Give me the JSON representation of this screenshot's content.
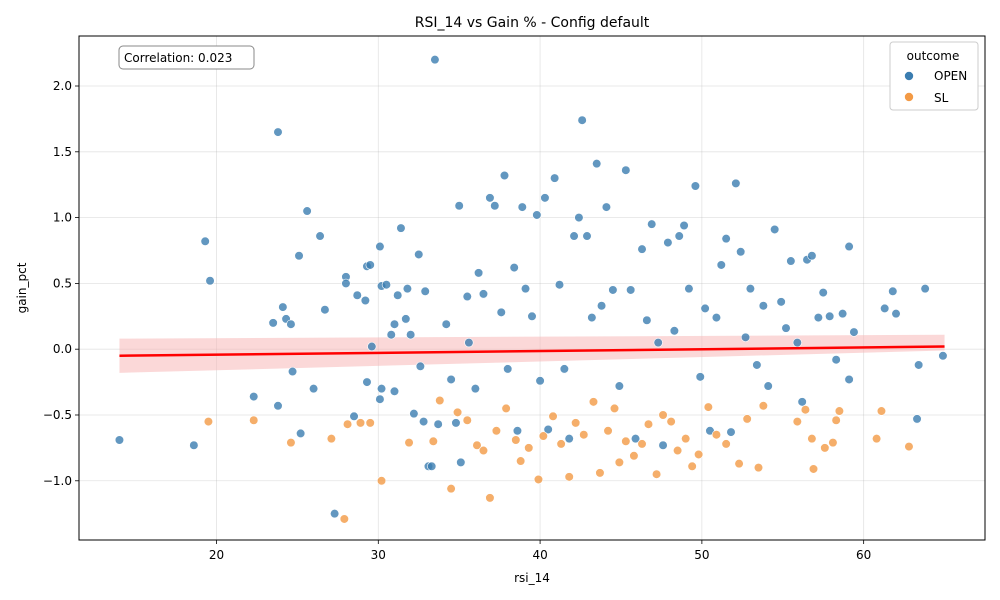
{
  "chart_data": {
    "type": "scatter",
    "title": "RSI_14 vs Gain % - Config default",
    "xlabel": "rsi_14",
    "ylabel": "gain_pct",
    "xlim": [
      11.5,
      67.5
    ],
    "ylim": [
      -1.45,
      2.38
    ],
    "xticks": [
      20,
      30,
      40,
      50,
      60
    ],
    "yticks": [
      -1.0,
      -0.5,
      0.0,
      0.5,
      1.0,
      1.5,
      2.0
    ],
    "xtick_labels": [
      "20",
      "30",
      "40",
      "50",
      "60"
    ],
    "ytick_labels": [
      "−1.0",
      "−0.5",
      "0.0",
      "0.5",
      "1.0",
      "1.5",
      "2.0"
    ],
    "grid": true,
    "annotation": "Correlation: 0.023",
    "legend": {
      "title": "outcome",
      "placement": "top-right",
      "entries": [
        {
          "label": "OPEN",
          "color": "#3b7db0"
        },
        {
          "label": "SL",
          "color": "#f39a45"
        }
      ]
    },
    "regression": {
      "color": "#ff0000",
      "band_color": "#f7b8b8",
      "x": [
        14,
        65
      ],
      "y": [
        -0.05,
        0.02
      ],
      "ci_lower": [
        -0.18,
        -0.01
      ],
      "ci_upper": [
        0.08,
        0.11
      ]
    },
    "series": [
      {
        "name": "OPEN",
        "color": "#3b7db0",
        "points": [
          [
            14.0,
            -0.69
          ],
          [
            18.6,
            -0.73
          ],
          [
            19.3,
            0.82
          ],
          [
            19.6,
            0.52
          ],
          [
            22.3,
            -0.36
          ],
          [
            23.5,
            0.2
          ],
          [
            23.8,
            -0.43
          ],
          [
            23.8,
            1.65
          ],
          [
            24.1,
            0.32
          ],
          [
            24.3,
            0.23
          ],
          [
            24.6,
            0.19
          ],
          [
            24.7,
            -0.17
          ],
          [
            25.1,
            0.71
          ],
          [
            25.2,
            -0.64
          ],
          [
            25.6,
            1.05
          ],
          [
            26.0,
            -0.3
          ],
          [
            26.4,
            0.86
          ],
          [
            26.7,
            0.3
          ],
          [
            27.3,
            -1.25
          ],
          [
            28.0,
            0.55
          ],
          [
            28.0,
            0.5
          ],
          [
            28.5,
            -0.51
          ],
          [
            28.7,
            0.41
          ],
          [
            29.2,
            0.37
          ],
          [
            29.3,
            0.63
          ],
          [
            29.3,
            -0.25
          ],
          [
            29.5,
            0.64
          ],
          [
            29.6,
            0.02
          ],
          [
            30.1,
            0.78
          ],
          [
            30.1,
            -0.38
          ],
          [
            30.2,
            -0.3
          ],
          [
            30.2,
            0.48
          ],
          [
            30.5,
            0.49
          ],
          [
            30.8,
            0.11
          ],
          [
            31.0,
            -0.32
          ],
          [
            31.0,
            0.19
          ],
          [
            31.2,
            0.41
          ],
          [
            31.4,
            0.92
          ],
          [
            31.7,
            0.23
          ],
          [
            31.8,
            0.46
          ],
          [
            32.0,
            0.11
          ],
          [
            32.2,
            -0.49
          ],
          [
            32.5,
            0.72
          ],
          [
            32.6,
            -0.13
          ],
          [
            32.8,
            -0.55
          ],
          [
            32.9,
            0.44
          ],
          [
            33.1,
            -0.89
          ],
          [
            33.3,
            -0.89
          ],
          [
            33.5,
            2.2
          ],
          [
            33.7,
            -0.57
          ],
          [
            34.2,
            0.19
          ],
          [
            34.5,
            -0.23
          ],
          [
            34.8,
            -0.56
          ],
          [
            35.0,
            1.09
          ],
          [
            35.1,
            -0.86
          ],
          [
            35.5,
            0.4
          ],
          [
            35.6,
            0.05
          ],
          [
            36.0,
            -0.3
          ],
          [
            36.2,
            0.58
          ],
          [
            36.5,
            0.42
          ],
          [
            36.9,
            1.15
          ],
          [
            37.2,
            1.09
          ],
          [
            37.6,
            0.28
          ],
          [
            37.8,
            1.32
          ],
          [
            38.0,
            -0.15
          ],
          [
            38.4,
            0.62
          ],
          [
            38.6,
            -0.62
          ],
          [
            38.9,
            1.08
          ],
          [
            39.1,
            0.46
          ],
          [
            39.5,
            0.25
          ],
          [
            39.8,
            1.02
          ],
          [
            40.0,
            -0.24
          ],
          [
            40.3,
            1.15
          ],
          [
            40.5,
            -0.61
          ],
          [
            40.9,
            1.3
          ],
          [
            41.2,
            0.49
          ],
          [
            41.5,
            -0.15
          ],
          [
            41.8,
            -0.68
          ],
          [
            42.1,
            0.86
          ],
          [
            42.4,
            1.0
          ],
          [
            42.6,
            1.74
          ],
          [
            42.9,
            0.86
          ],
          [
            43.2,
            0.24
          ],
          [
            43.5,
            1.41
          ],
          [
            43.8,
            0.33
          ],
          [
            44.1,
            1.08
          ],
          [
            44.5,
            0.45
          ],
          [
            44.9,
            -0.28
          ],
          [
            45.3,
            1.36
          ],
          [
            45.6,
            0.45
          ],
          [
            45.9,
            -0.68
          ],
          [
            46.3,
            0.76
          ],
          [
            46.6,
            0.22
          ],
          [
            46.9,
            0.95
          ],
          [
            47.3,
            0.05
          ],
          [
            47.6,
            -0.73
          ],
          [
            47.9,
            0.81
          ],
          [
            48.3,
            0.14
          ],
          [
            48.6,
            0.86
          ],
          [
            48.9,
            0.94
          ],
          [
            49.2,
            0.46
          ],
          [
            49.6,
            1.24
          ],
          [
            49.9,
            -0.21
          ],
          [
            50.2,
            0.31
          ],
          [
            50.5,
            -0.62
          ],
          [
            50.9,
            0.24
          ],
          [
            51.2,
            0.64
          ],
          [
            51.5,
            0.84
          ],
          [
            51.8,
            -0.63
          ],
          [
            52.1,
            1.26
          ],
          [
            52.4,
            0.74
          ],
          [
            52.7,
            0.09
          ],
          [
            53.0,
            0.46
          ],
          [
            53.4,
            -0.12
          ],
          [
            53.8,
            0.33
          ],
          [
            54.1,
            -0.28
          ],
          [
            54.5,
            0.91
          ],
          [
            54.9,
            0.36
          ],
          [
            55.2,
            0.16
          ],
          [
            55.5,
            0.67
          ],
          [
            55.9,
            0.05
          ],
          [
            56.2,
            -0.4
          ],
          [
            56.5,
            0.68
          ],
          [
            56.8,
            0.71
          ],
          [
            57.2,
            0.24
          ],
          [
            57.5,
            0.43
          ],
          [
            57.9,
            0.25
          ],
          [
            58.3,
            -0.08
          ],
          [
            58.7,
            0.27
          ],
          [
            59.1,
            0.78
          ],
          [
            59.1,
            -0.23
          ],
          [
            59.4,
            0.13
          ],
          [
            61.3,
            0.31
          ],
          [
            61.8,
            0.44
          ],
          [
            62.0,
            0.27
          ],
          [
            63.3,
            -0.53
          ],
          [
            63.4,
            -0.12
          ],
          [
            63.8,
            0.46
          ],
          [
            64.9,
            -0.05
          ]
        ]
      },
      {
        "name": "SL",
        "color": "#f39a45",
        "points": [
          [
            19.5,
            -0.55
          ],
          [
            22.3,
            -0.54
          ],
          [
            24.6,
            -0.71
          ],
          [
            27.1,
            -0.68
          ],
          [
            27.9,
            -1.29
          ],
          [
            28.1,
            -0.57
          ],
          [
            28.9,
            -0.56
          ],
          [
            29.5,
            -0.56
          ],
          [
            30.2,
            -1.0
          ],
          [
            31.9,
            -0.71
          ],
          [
            33.4,
            -0.7
          ],
          [
            33.8,
            -0.39
          ],
          [
            34.5,
            -1.06
          ],
          [
            34.9,
            -0.48
          ],
          [
            35.5,
            -0.54
          ],
          [
            36.1,
            -0.73
          ],
          [
            36.5,
            -0.77
          ],
          [
            36.9,
            -1.13
          ],
          [
            37.3,
            -0.62
          ],
          [
            37.9,
            -0.45
          ],
          [
            38.5,
            -0.69
          ],
          [
            38.8,
            -0.85
          ],
          [
            39.3,
            -0.75
          ],
          [
            39.9,
            -0.99
          ],
          [
            40.2,
            -0.66
          ],
          [
            40.8,
            -0.51
          ],
          [
            41.3,
            -0.72
          ],
          [
            41.8,
            -0.97
          ],
          [
            42.2,
            -0.56
          ],
          [
            42.7,
            -0.65
          ],
          [
            43.3,
            -0.4
          ],
          [
            43.7,
            -0.94
          ],
          [
            44.2,
            -0.62
          ],
          [
            44.6,
            -0.45
          ],
          [
            44.9,
            -0.86
          ],
          [
            45.3,
            -0.7
          ],
          [
            45.8,
            -0.81
          ],
          [
            46.3,
            -0.72
          ],
          [
            46.7,
            -0.57
          ],
          [
            47.2,
            -0.95
          ],
          [
            47.6,
            -0.5
          ],
          [
            48.1,
            -0.55
          ],
          [
            48.5,
            -0.77
          ],
          [
            49.0,
            -0.68
          ],
          [
            49.4,
            -0.89
          ],
          [
            49.8,
            -0.8
          ],
          [
            50.4,
            -0.44
          ],
          [
            50.9,
            -0.65
          ],
          [
            51.5,
            -0.72
          ],
          [
            52.3,
            -0.87
          ],
          [
            52.8,
            -0.53
          ],
          [
            53.5,
            -0.9
          ],
          [
            53.8,
            -0.43
          ],
          [
            55.9,
            -0.55
          ],
          [
            56.4,
            -0.46
          ],
          [
            56.8,
            -0.68
          ],
          [
            56.9,
            -0.91
          ],
          [
            57.6,
            -0.75
          ],
          [
            58.1,
            -0.71
          ],
          [
            58.3,
            -0.54
          ],
          [
            58.5,
            -0.47
          ],
          [
            60.8,
            -0.68
          ],
          [
            61.1,
            -0.47
          ],
          [
            62.8,
            -0.74
          ]
        ]
      }
    ]
  }
}
